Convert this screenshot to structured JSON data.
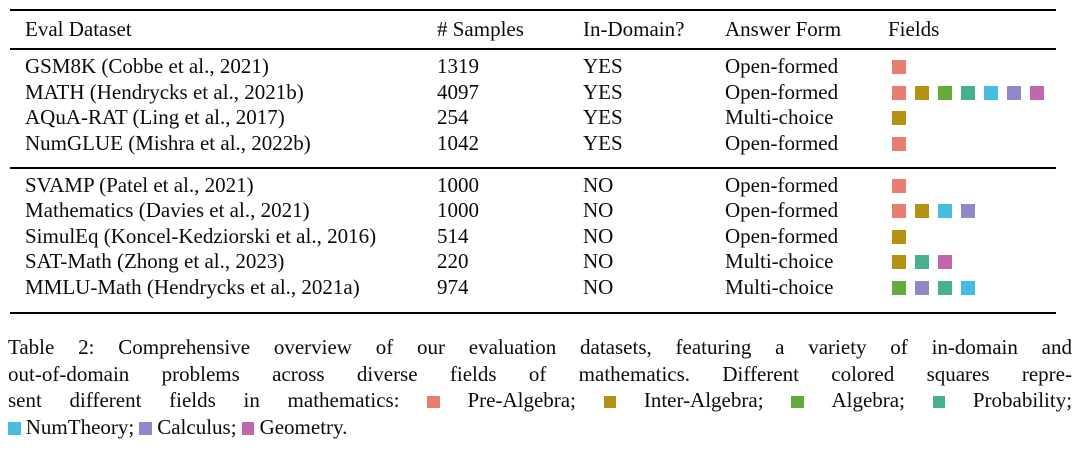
{
  "table": {
    "columns": [
      "Eval Dataset",
      "# Samples",
      "In-Domain?",
      "Answer Form",
      "Fields"
    ],
    "groups": [
      {
        "rows": [
          {
            "dataset": "GSM8K (Cobbe et al., 2021)",
            "samples": "1319",
            "in_domain": "YES",
            "answer_form": "Open-formed",
            "fields": [
              "pre_algebra"
            ]
          },
          {
            "dataset": "MATH (Hendrycks et al., 2021b)",
            "samples": "4097",
            "in_domain": "YES",
            "answer_form": "Open-formed",
            "fields": [
              "pre_algebra",
              "inter_algebra",
              "algebra",
              "probability",
              "num_theory",
              "calculus",
              "geometry"
            ]
          },
          {
            "dataset": "AQuA-RAT (Ling et al., 2017)",
            "samples": "254",
            "in_domain": "YES",
            "answer_form": "Multi-choice",
            "fields": [
              "inter_algebra"
            ]
          },
          {
            "dataset": "NumGLUE (Mishra et al., 2022b)",
            "samples": "1042",
            "in_domain": "YES",
            "answer_form": "Open-formed",
            "fields": [
              "pre_algebra"
            ]
          }
        ]
      },
      {
        "rows": [
          {
            "dataset": "SVAMP (Patel et al., 2021)",
            "samples": "1000",
            "in_domain": "NO",
            "answer_form": "Open-formed",
            "fields": [
              "pre_algebra"
            ]
          },
          {
            "dataset": "Mathematics (Davies et al., 2021)",
            "samples": "1000",
            "in_domain": "NO",
            "answer_form": "Open-formed",
            "fields": [
              "pre_algebra",
              "inter_algebra",
              "num_theory",
              "calculus"
            ]
          },
          {
            "dataset": "SimulEq (Koncel-Kedziorski et al., 2016)",
            "samples": "514",
            "in_domain": "NO",
            "answer_form": "Open-formed",
            "fields": [
              "inter_algebra"
            ]
          },
          {
            "dataset": "SAT-Math (Zhong et al., 2023)",
            "samples": "220",
            "in_domain": "NO",
            "answer_form": "Multi-choice",
            "fields": [
              "inter_algebra",
              "probability",
              "geometry"
            ]
          },
          {
            "dataset": "MMLU-Math (Hendrycks et al., 2021a)",
            "samples": "974",
            "in_domain": "NO",
            "answer_form": "Multi-choice",
            "fields": [
              "algebra",
              "calculus",
              "probability",
              "num_theory"
            ]
          }
        ]
      }
    ]
  },
  "field_colors": {
    "pre_algebra": "#e87e72",
    "inter_algebra": "#b39410",
    "algebra": "#61ac3b",
    "probability": "#47b18d",
    "num_theory": "#45bee4",
    "calculus": "#8e89c8",
    "geometry": "#c068ad"
  },
  "caption": {
    "line1": "Table 2: Comprehensive overview of our evaluation datasets, featuring a variety of in-domain and",
    "line2": "out-of-domain problems across diverse fields of mathematics.  Different colored squares repre-",
    "line3_prefix": "sent different fields in mathematics:",
    "legend": [
      {
        "label": "Pre-Algebra",
        "field": "pre_algebra"
      },
      {
        "label": "Inter-Algebra",
        "field": "inter_algebra"
      },
      {
        "label": "Algebra",
        "field": "algebra"
      },
      {
        "label": "Probability",
        "field": "probability"
      },
      {
        "label": "NumTheory",
        "field": "num_theory"
      },
      {
        "label": "Calculus",
        "field": "calculus"
      },
      {
        "label": "Geometry",
        "field": "geometry"
      }
    ],
    "legend_line3_count": 4,
    "item_separator": ";",
    "terminator": "."
  }
}
